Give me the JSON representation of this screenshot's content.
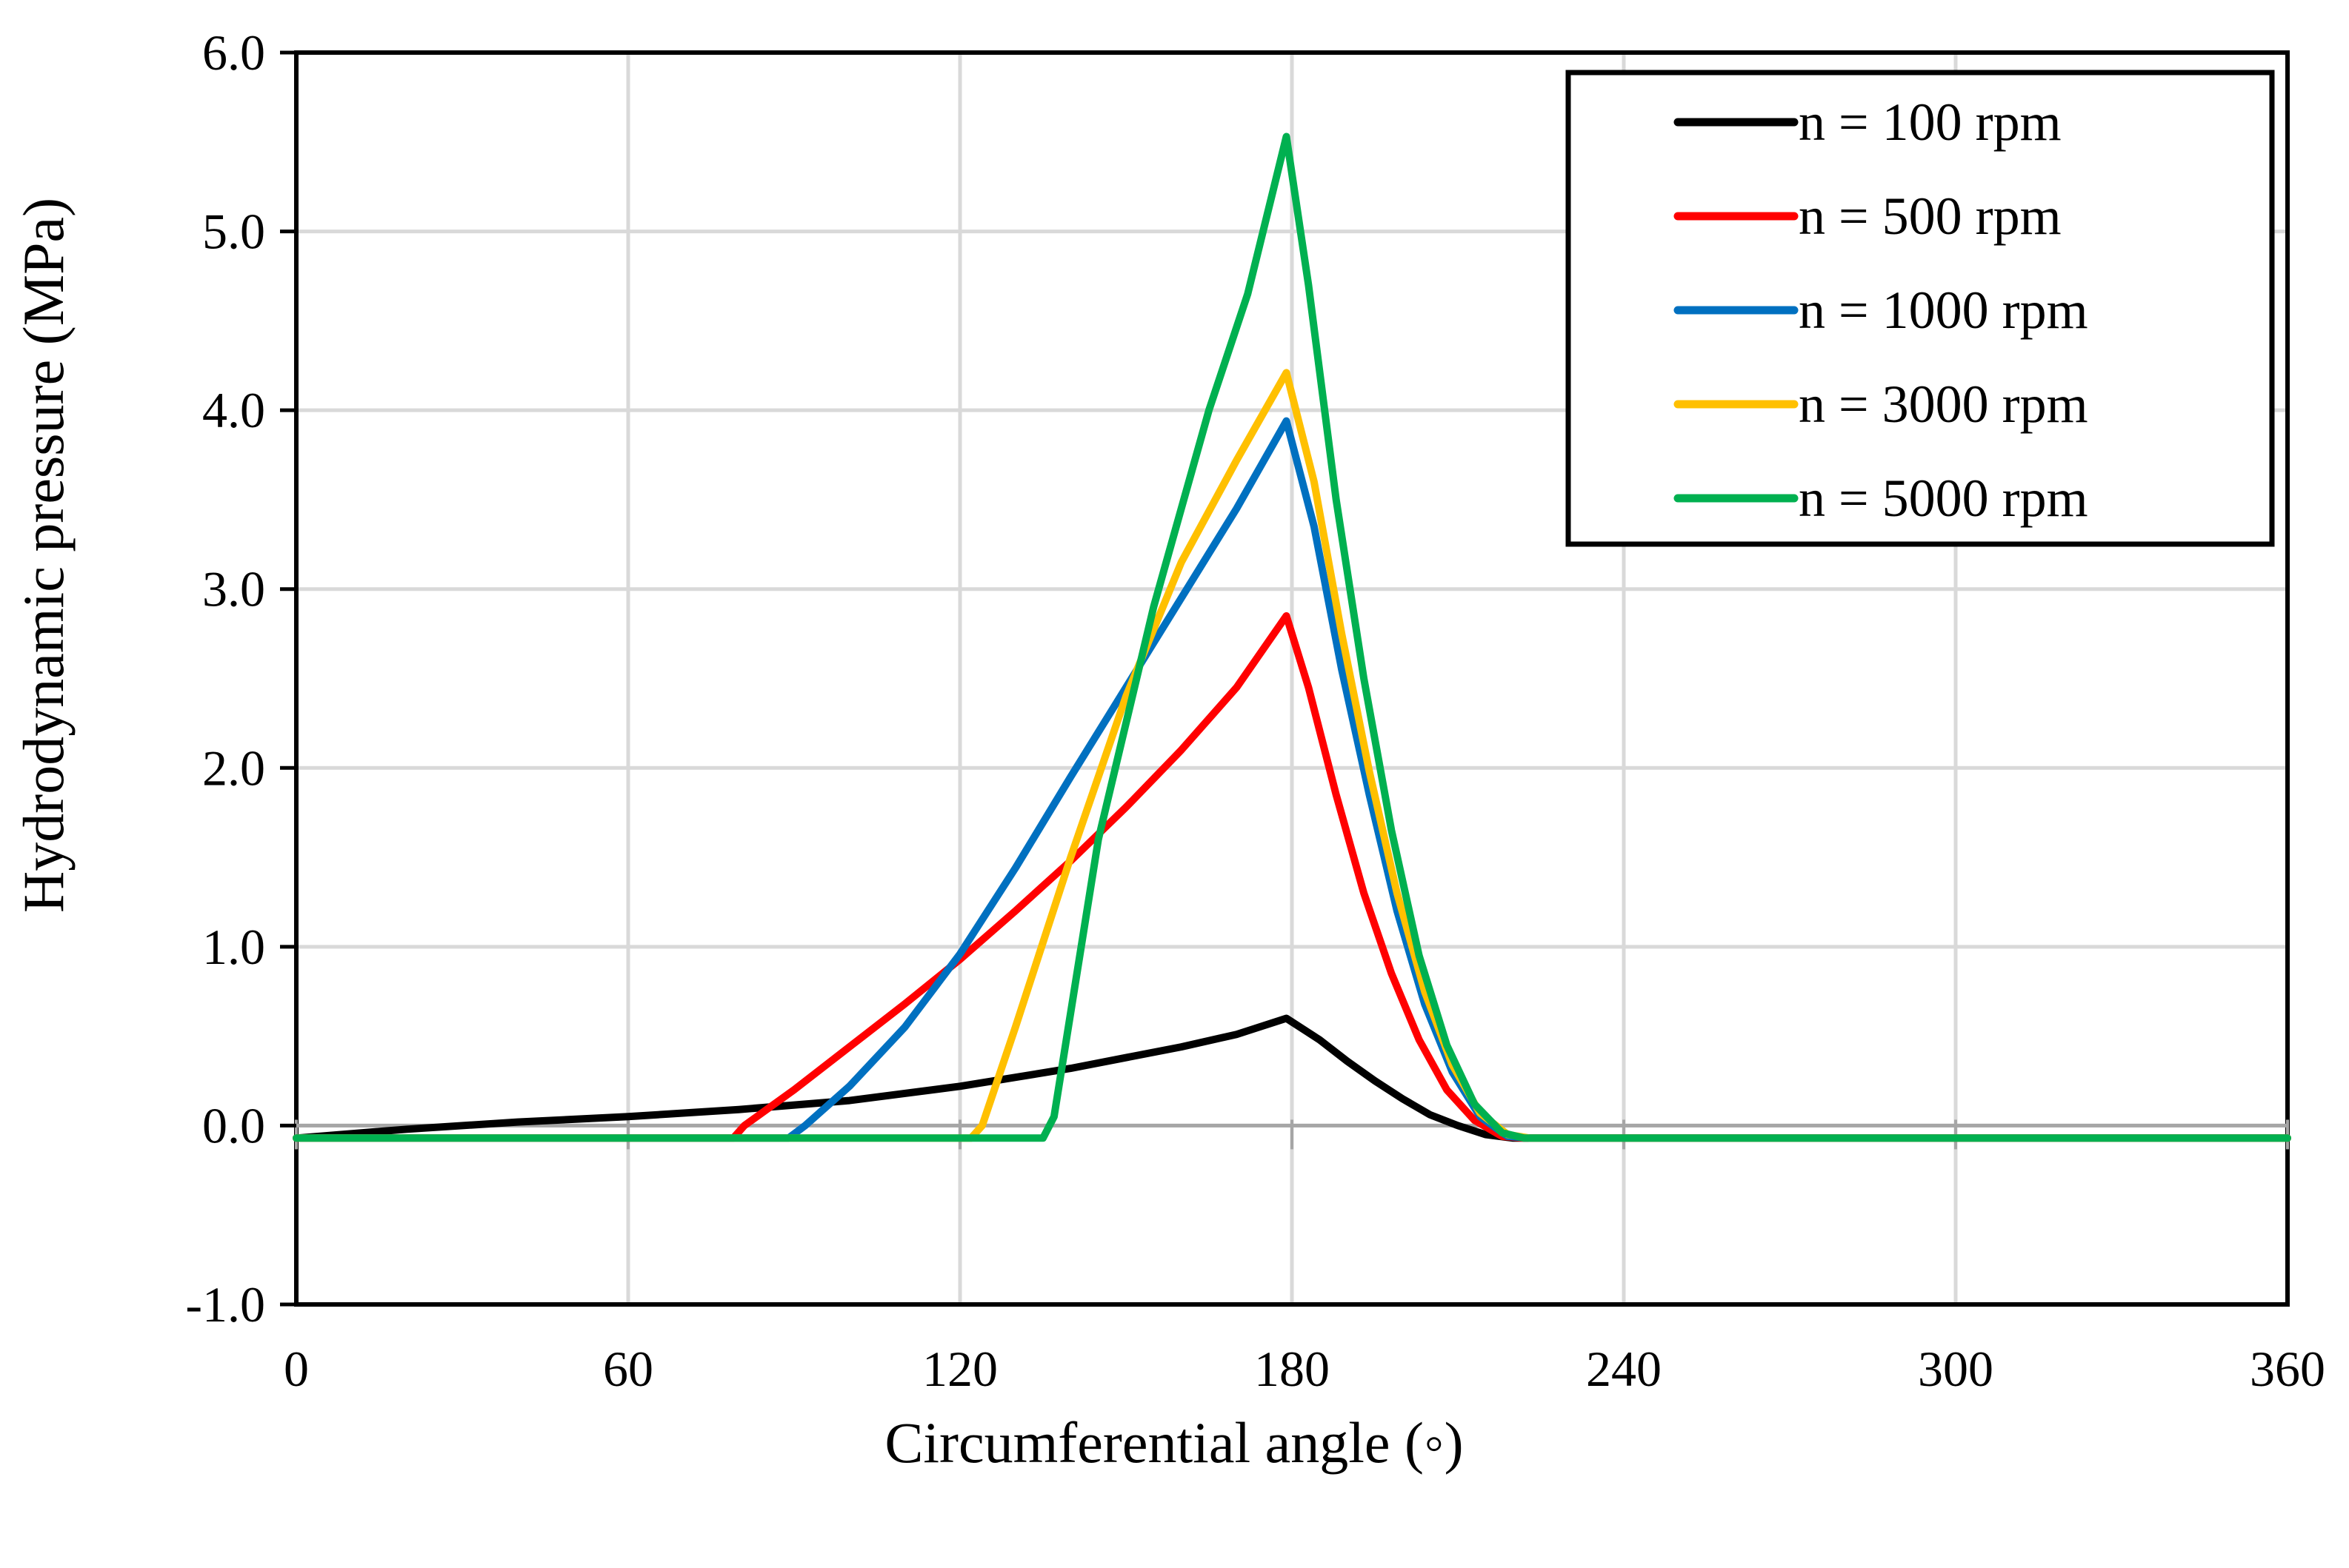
{
  "chart_data": {
    "type": "line",
    "title": "",
    "xlabel": "Circumferential angle (◦)",
    "ylabel": "Hydrodynamic pressure (MPa)",
    "xlim": [
      0,
      360
    ],
    "ylim": [
      -1.0,
      6.0
    ],
    "xticks": [
      0,
      60,
      120,
      180,
      240,
      300,
      360
    ],
    "yticks": [
      -1.0,
      0.0,
      1.0,
      2.0,
      3.0,
      4.0,
      5.0,
      6.0
    ],
    "xtick_labels": [
      "0",
      "60",
      "120",
      "180",
      "240",
      "300",
      "360"
    ],
    "ytick_labels": [
      "-1.0",
      "0.0",
      "1.0",
      "2.0",
      "3.0",
      "4.0",
      "5.0",
      "6.0"
    ],
    "grid": true,
    "legend_position": "top-right",
    "series": [
      {
        "name": "n = 100 rpm",
        "color": "#000000",
        "points": [
          [
            0,
            -0.07
          ],
          [
            20,
            -0.02
          ],
          [
            40,
            0.02
          ],
          [
            60,
            0.05
          ],
          [
            80,
            0.09
          ],
          [
            100,
            0.14
          ],
          [
            120,
            0.22
          ],
          [
            140,
            0.32
          ],
          [
            160,
            0.44
          ],
          [
            170,
            0.51
          ],
          [
            179,
            0.6
          ],
          [
            185,
            0.48
          ],
          [
            190,
            0.36
          ],
          [
            195,
            0.25
          ],
          [
            200,
            0.15
          ],
          [
            205,
            0.06
          ],
          [
            210,
            0.0
          ],
          [
            215,
            -0.05
          ],
          [
            220,
            -0.07
          ],
          [
            360,
            -0.07
          ]
        ]
      },
      {
        "name": "n = 500 rpm",
        "color": "#ff0000",
        "points": [
          [
            0,
            -0.07
          ],
          [
            79,
            -0.07
          ],
          [
            81,
            0.0
          ],
          [
            90,
            0.2
          ],
          [
            100,
            0.44
          ],
          [
            110,
            0.68
          ],
          [
            120,
            0.93
          ],
          [
            130,
            1.2
          ],
          [
            140,
            1.48
          ],
          [
            150,
            1.78
          ],
          [
            160,
            2.1
          ],
          [
            170,
            2.45
          ],
          [
            179,
            2.85
          ],
          [
            183,
            2.45
          ],
          [
            188,
            1.85
          ],
          [
            193,
            1.3
          ],
          [
            198,
            0.85
          ],
          [
            203,
            0.48
          ],
          [
            208,
            0.2
          ],
          [
            213,
            0.03
          ],
          [
            218,
            -0.06
          ],
          [
            222,
            -0.07
          ],
          [
            360,
            -0.07
          ]
        ]
      },
      {
        "name": "n = 1000 rpm",
        "color": "#0070c0",
        "points": [
          [
            0,
            -0.07
          ],
          [
            89,
            -0.07
          ],
          [
            92,
            0.0
          ],
          [
            100,
            0.22
          ],
          [
            110,
            0.55
          ],
          [
            120,
            0.96
          ],
          [
            130,
            1.44
          ],
          [
            140,
            1.95
          ],
          [
            150,
            2.45
          ],
          [
            160,
            2.95
          ],
          [
            170,
            3.45
          ],
          [
            179,
            3.94
          ],
          [
            184,
            3.35
          ],
          [
            189,
            2.55
          ],
          [
            194,
            1.85
          ],
          [
            199,
            1.2
          ],
          [
            204,
            0.68
          ],
          [
            209,
            0.3
          ],
          [
            214,
            0.05
          ],
          [
            219,
            -0.06
          ],
          [
            223,
            -0.07
          ],
          [
            360,
            -0.07
          ]
        ]
      },
      {
        "name": "n = 3000 rpm",
        "color": "#ffc000",
        "points": [
          [
            0,
            -0.07
          ],
          [
            122,
            -0.07
          ],
          [
            124,
            0.0
          ],
          [
            130,
            0.55
          ],
          [
            140,
            1.5
          ],
          [
            150,
            2.4
          ],
          [
            160,
            3.15
          ],
          [
            170,
            3.72
          ],
          [
            179,
            4.21
          ],
          [
            184,
            3.6
          ],
          [
            189,
            2.75
          ],
          [
            194,
            1.98
          ],
          [
            199,
            1.3
          ],
          [
            204,
            0.75
          ],
          [
            209,
            0.34
          ],
          [
            214,
            0.07
          ],
          [
            219,
            -0.05
          ],
          [
            223,
            -0.07
          ],
          [
            360,
            -0.07
          ]
        ]
      },
      {
        "name": "n = 5000 rpm",
        "color": "#00b050",
        "points": [
          [
            0,
            -0.07
          ],
          [
            135,
            -0.07
          ],
          [
            137,
            0.05
          ],
          [
            145,
            1.6
          ],
          [
            155,
            2.9
          ],
          [
            165,
            4.0
          ],
          [
            172,
            4.65
          ],
          [
            179,
            5.53
          ],
          [
            183,
            4.7
          ],
          [
            188,
            3.5
          ],
          [
            193,
            2.5
          ],
          [
            198,
            1.65
          ],
          [
            203,
            0.95
          ],
          [
            208,
            0.45
          ],
          [
            213,
            0.12
          ],
          [
            218,
            -0.04
          ],
          [
            222,
            -0.07
          ],
          [
            360,
            -0.07
          ]
        ]
      }
    ]
  }
}
